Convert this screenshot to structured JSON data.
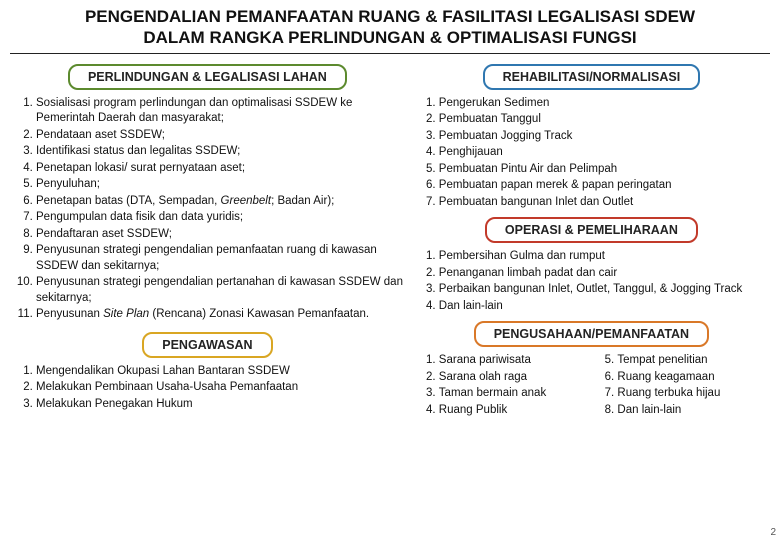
{
  "title_line1": "PENGENDALIAN PEMANFAATAN RUANG & FASILITASI LEGALISASI SDEW",
  "title_line2": "DALAM RANGKA PERLINDUNGAN & OPTIMALISASI FUNGSI",
  "colors": {
    "green": "#5c8a2e",
    "yellow": "#d9a623",
    "blue": "#2f77b0",
    "red": "#c23a2a",
    "orange": "#d97828",
    "text": "#111111",
    "bg": "#ffffff"
  },
  "left": {
    "section1": {
      "header": "PERLINDUNGAN & LEGALISASI LAHAN",
      "border_color_key": "green",
      "items": [
        "Sosialisasi program perlindungan dan optimalisasi SSDEW ke Pemerintah Daerah dan masyarakat;",
        "Pendataan aset SSDEW;",
        "Identifikasi status dan legalitas SSDEW;",
        "Penetapan lokasi/ surat pernyataan aset;",
        "Penyuluhan;",
        "Penetapan batas (DTA, Sempadan, <em>Greenbelt</em>; Badan Air);",
        "Pengumpulan data fisik dan data yuridis;",
        "Pendaftaran aset SSDEW;",
        "Penyusunan strategi pengendalian pemanfaatan ruang di kawasan SSDEW dan sekitarnya;",
        "Penyusunan strategi pengendalian pertanahan di kawasan SSDEW dan sekitarnya;",
        "Penyusunan <em>Site Plan</em> (Rencana) Zonasi Kawasan Pemanfaatan."
      ]
    },
    "section2": {
      "header": "PENGAWASAN",
      "border_color_key": "yellow",
      "items": [
        "Mengendalikan Okupasi Lahan Bantaran SSDEW",
        "Melakukan Pembinaan Usaha-Usaha Pemanfaatan",
        "Melakukan Penegakan Hukum"
      ]
    }
  },
  "right": {
    "section1": {
      "header": "REHABILITASI/NORMALISASI",
      "border_color_key": "blue",
      "items": [
        "Pengerukan Sedimen",
        "Pembuatan Tanggul",
        "Pembuatan Jogging Track",
        "Penghijauan",
        "Pembuatan Pintu Air dan Pelimpah",
        "Pembuatan papan merek & papan peringatan",
        "Pembuatan bangunan Inlet dan Outlet"
      ]
    },
    "section2": {
      "header": "OPERASI & PEMELIHARAAN",
      "border_color_key": "red",
      "items": [
        "Pembersihan Gulma dan rumput",
        "Penanganan limbah padat dan cair",
        "Perbaikan bangunan Inlet, Outlet, Tanggul, & Jogging Track",
        "Dan lain-lain"
      ]
    },
    "section3": {
      "header": "PENGUSAHAAN/PEMANFAATAN",
      "border_color_key": "orange",
      "colA": [
        "Sarana pariwisata",
        "Sarana olah raga",
        "Taman bermain anak",
        "Ruang Publik"
      ],
      "colB": [
        "Tempat penelitian",
        "Ruang keagamaan",
        "Ruang terbuka hijau",
        "Dan lain-lain"
      ]
    }
  },
  "page_number": "2"
}
